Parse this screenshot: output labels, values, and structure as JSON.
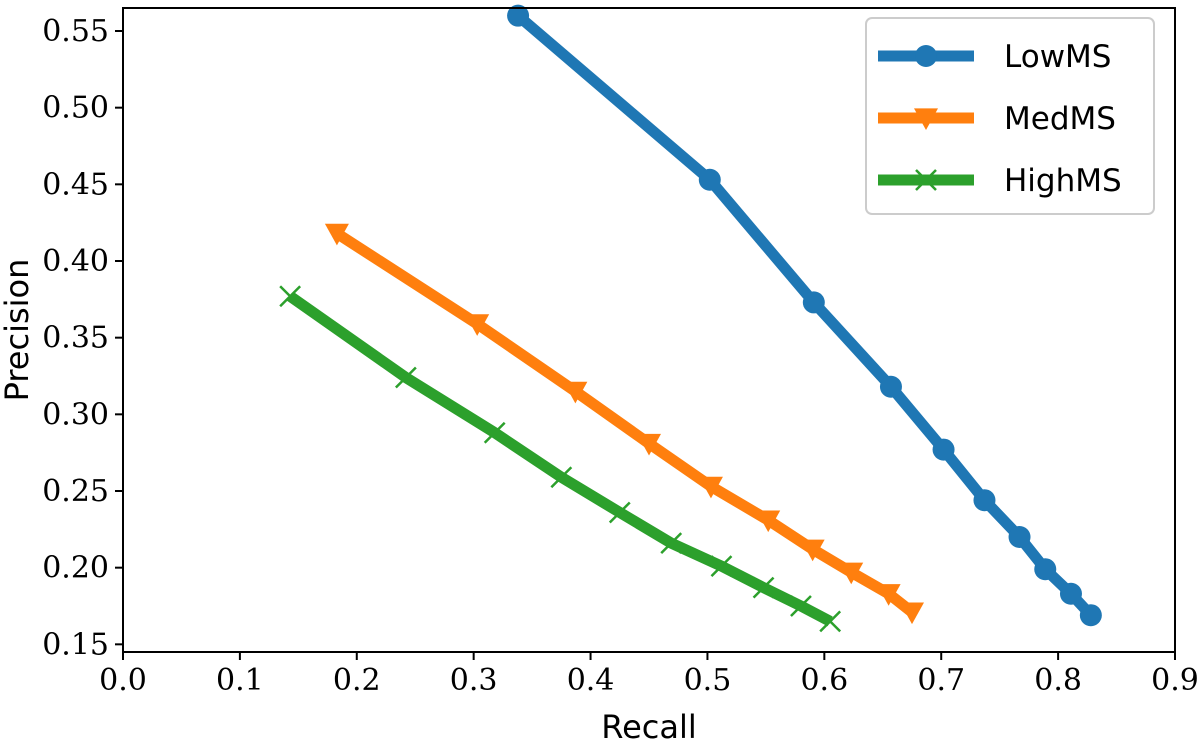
{
  "chart_data": {
    "type": "line",
    "title": "",
    "xlabel": "Recall",
    "ylabel": "Precision",
    "xlim": [
      0.0,
      0.9
    ],
    "ylim": [
      0.145,
      0.565
    ],
    "xticks": [
      "0.0",
      "0.1",
      "0.2",
      "0.3",
      "0.4",
      "0.5",
      "0.6",
      "0.7",
      "0.8",
      "0.9"
    ],
    "xtick_values": [
      0.0,
      0.1,
      0.2,
      0.3,
      0.4,
      0.5,
      0.6,
      0.7,
      0.8,
      0.9
    ],
    "yticks": [
      "0.15",
      "0.20",
      "0.25",
      "0.30",
      "0.35",
      "0.40",
      "0.45",
      "0.50",
      "0.55"
    ],
    "ytick_values": [
      0.15,
      0.2,
      0.25,
      0.3,
      0.35,
      0.4,
      0.45,
      0.5,
      0.55
    ],
    "grid": false,
    "legend_position": "top-right",
    "series": [
      {
        "name": "LowMS",
        "color": "#1f77b4",
        "marker": "circle",
        "x": [
          0.338,
          0.502,
          0.591,
          0.657,
          0.702,
          0.737,
          0.767,
          0.789,
          0.811,
          0.828
        ],
        "y": [
          0.56,
          0.453,
          0.373,
          0.318,
          0.277,
          0.244,
          0.22,
          0.199,
          0.183,
          0.169
        ]
      },
      {
        "name": "MedMS",
        "color": "#ff7f0e",
        "marker": "triangle-down",
        "x": [
          0.183,
          0.303,
          0.387,
          0.45,
          0.503,
          0.552,
          0.59,
          0.623,
          0.655,
          0.675
        ],
        "y": [
          0.418,
          0.359,
          0.315,
          0.281,
          0.253,
          0.231,
          0.212,
          0.197,
          0.183,
          0.171
        ]
      },
      {
        "name": "HighMS",
        "color": "#2ca02c",
        "marker": "x",
        "x": [
          0.143,
          0.242,
          0.318,
          0.375,
          0.425,
          0.469,
          0.512,
          0.548,
          0.58,
          0.605
        ],
        "y": [
          0.377,
          0.324,
          0.288,
          0.259,
          0.236,
          0.216,
          0.201,
          0.187,
          0.175,
          0.165
        ]
      }
    ]
  }
}
